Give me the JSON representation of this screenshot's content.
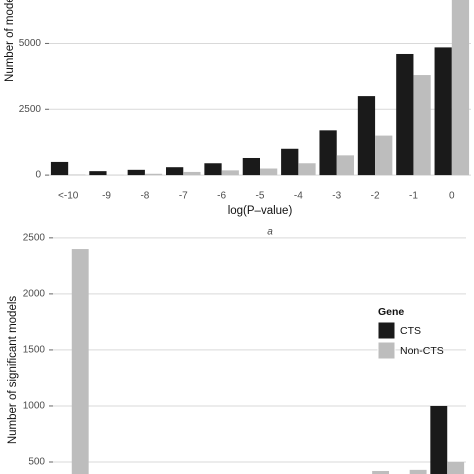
{
  "chart_data": [
    {
      "type": "bar",
      "y_label": "Number of models",
      "x_label": "log(P–value)",
      "caption": "a",
      "categories": [
        "<-10",
        "-9",
        "-8",
        "-7",
        "-6",
        "-5",
        "-4",
        "-3",
        "-2",
        "-1",
        "0"
      ],
      "series": [
        {
          "name": "CTS",
          "color": "#1a1a1a",
          "values": [
            500,
            150,
            200,
            300,
            450,
            650,
            1000,
            1700,
            3000,
            4600,
            4850
          ]
        },
        {
          "name": "Non-CTS",
          "color": "#bdbdbd",
          "values": [
            20,
            10,
            50,
            120,
            180,
            250,
            450,
            750,
            1500,
            3800,
            6800
          ]
        }
      ],
      "ylim": [
        -300,
        6650
      ],
      "yticks": [
        0,
        2500,
        5000
      ],
      "grid": true
    },
    {
      "type": "bar",
      "y_label": "Number of significant models",
      "legend_title": "Gene",
      "legend": "right",
      "categories": [
        null,
        null,
        null,
        null,
        null,
        null,
        null,
        null,
        null,
        null,
        null
      ],
      "series": [
        {
          "name": "CTS",
          "color": "#1a1a1a",
          "values": [
            null,
            null,
            null,
            null,
            null,
            null,
            null,
            null,
            null,
            null,
            1000
          ]
        },
        {
          "name": "Non-CTS",
          "color": "#bdbdbd",
          "values": [
            2400,
            null,
            null,
            null,
            null,
            null,
            null,
            null,
            420,
            430,
            500
          ]
        }
      ],
      "ylim": [
        393,
        2570
      ],
      "yticks": [
        500,
        1000,
        1500,
        2000,
        2500
      ],
      "grid": true
    }
  ]
}
